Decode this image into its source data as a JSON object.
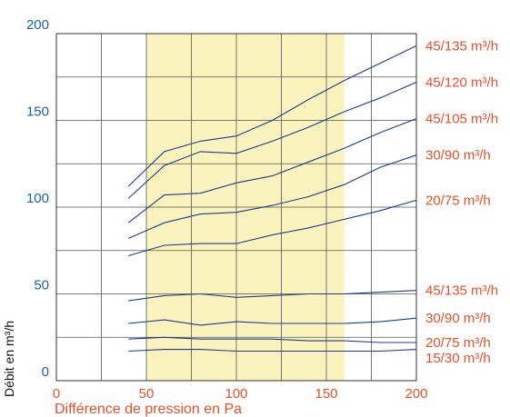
{
  "chart_data": {
    "type": "line",
    "title": "",
    "xlabel": "Différence de pression en Pa",
    "ylabel": "Débit en m³/h",
    "xlim": [
      0,
      200
    ],
    "ylim": [
      0,
      200
    ],
    "x_ticks": [
      "0",
      "50",
      "100",
      "150",
      "200"
    ],
    "y_ticks": [
      "0",
      "50",
      "100",
      "150",
      "200"
    ],
    "x_tick_values": [
      0,
      50,
      100,
      150,
      200
    ],
    "y_tick_values": [
      0,
      50,
      100,
      150,
      200
    ],
    "grid": true,
    "highlight_band": {
      "x": [
        50,
        160
      ],
      "color": "#fbf3be"
    },
    "colors": {
      "line": "#1f3a8c",
      "grid": "#555555",
      "ytick": "#1f5fa8",
      "xtick": "#e8502a",
      "label": "#e8502a"
    },
    "series": [
      {
        "name": "45/135 m³/h",
        "x": [
          40,
          60,
          80,
          100,
          120,
          140,
          160,
          180,
          200
        ],
        "y": [
          112,
          132,
          138,
          141,
          150,
          162,
          173,
          183,
          193
        ]
      },
      {
        "name": "45/120 m³/h",
        "x": [
          40,
          60,
          80,
          100,
          120,
          140,
          160,
          180,
          200
        ],
        "y": [
          105,
          124,
          132,
          131,
          138,
          146,
          155,
          163,
          172
        ]
      },
      {
        "name": "45/105 m³/h",
        "x": [
          40,
          60,
          80,
          100,
          120,
          140,
          160,
          180,
          200
        ],
        "y": [
          91,
          107,
          108,
          114,
          118,
          126,
          134,
          143,
          151
        ]
      },
      {
        "name": "30/90 m³/h",
        "x": [
          40,
          60,
          80,
          100,
          120,
          140,
          160,
          180,
          200
        ],
        "y": [
          82,
          91,
          96,
          97,
          101,
          106,
          113,
          123,
          130
        ]
      },
      {
        "name": "20/75 m³/h",
        "x": [
          40,
          60,
          80,
          100,
          120,
          140,
          160,
          180,
          200
        ],
        "y": [
          72,
          78,
          79,
          79,
          84,
          88,
          93,
          98,
          104
        ]
      },
      {
        "name": "45/135 m³/h",
        "x": [
          40,
          60,
          80,
          100,
          120,
          140,
          160,
          180,
          200
        ],
        "y": [
          46,
          49,
          50,
          48,
          49,
          50,
          50,
          51,
          52
        ]
      },
      {
        "name": "30/90 m³/h",
        "x": [
          40,
          60,
          80,
          100,
          120,
          140,
          160,
          180,
          200
        ],
        "y": [
          33,
          35,
          32,
          34,
          33,
          33,
          33,
          34,
          36
        ]
      },
      {
        "name": "20/75 m³/h",
        "x": [
          40,
          60,
          80,
          100,
          120,
          140,
          160,
          180,
          200
        ],
        "y": [
          24,
          25,
          24,
          24,
          24,
          23,
          23,
          22,
          22
        ]
      },
      {
        "name": "15/30 m³/h",
        "x": [
          40,
          60,
          80,
          100,
          120,
          140,
          160,
          180,
          200
        ],
        "y": [
          17,
          18,
          18,
          17,
          17,
          17,
          17,
          17,
          18
        ]
      }
    ]
  }
}
